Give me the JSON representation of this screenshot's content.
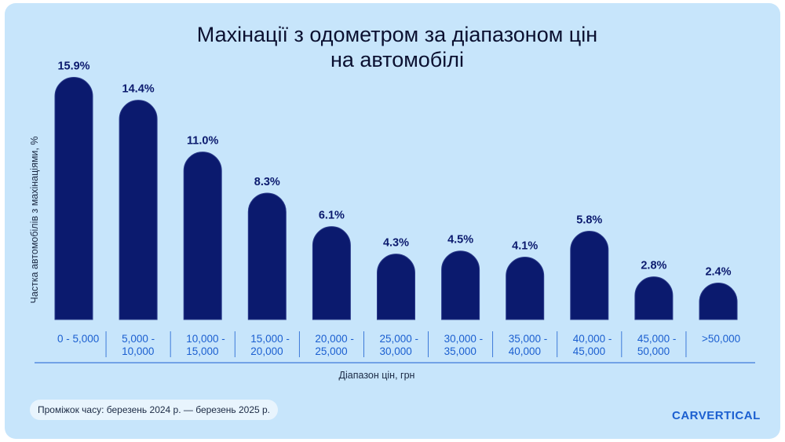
{
  "chart_data": {
    "type": "bar",
    "title": "Махінації з одометром за діапазоном цін на автомобілі",
    "y_label": "Частка автомобілів з махінаціями, %",
    "x_label": "Діапазон цін, грн",
    "note": "Проміжок часу: березень 2024 р. — березень 2025 р.",
    "brand": "CARVERTICAL",
    "categories": [
      "0 - 5,000",
      "5,000 - 10,000",
      "10,000 - 15,000",
      "15,000 - 20,000",
      "20,000 - 25,000",
      "25,000 - 30,000",
      "30,000 - 35,000",
      "35,000 - 40,000",
      "40,000 - 45,000",
      "45,000 - 50,000",
      ">50,000"
    ],
    "values": [
      15.9,
      14.4,
      11.0,
      8.3,
      6.1,
      4.3,
      4.5,
      4.1,
      5.8,
      2.8,
      2.4
    ],
    "value_labels": [
      "15.9%",
      "14.4%",
      "11.0%",
      "8.3%",
      "6.1%",
      "4.3%",
      "4.5%",
      "4.1%",
      "5.8%",
      "2.8%",
      "2.4%"
    ],
    "color": "#0b1a6e"
  }
}
